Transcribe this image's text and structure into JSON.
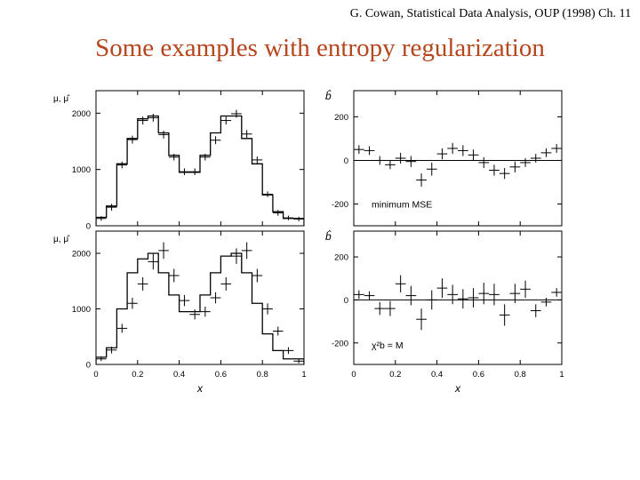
{
  "header": {
    "citation": "G. Cowan, Statistical Data Analysis, OUP (1998) Ch. 11"
  },
  "slide": {
    "title": "Some examples with entropy regularization"
  },
  "chart_data": [
    {
      "type": "line",
      "panel": "top-left",
      "ylabel": "μ, μ̂",
      "xlim": [
        0,
        1
      ],
      "ylim": [
        0,
        2400
      ],
      "yticks": [
        0,
        1000,
        2000
      ],
      "x": [
        0.025,
        0.075,
        0.125,
        0.175,
        0.225,
        0.275,
        0.325,
        0.375,
        0.425,
        0.475,
        0.525,
        0.575,
        0.625,
        0.675,
        0.725,
        0.775,
        0.825,
        0.875,
        0.925,
        0.975
      ],
      "series": [
        {
          "style": "histogram",
          "values": [
            150,
            350,
            1100,
            1550,
            1900,
            1950,
            1650,
            1250,
            950,
            950,
            1250,
            1650,
            1950,
            1950,
            1550,
            1100,
            550,
            250,
            130,
            130
          ]
        },
        {
          "style": "points",
          "values": [
            130,
            330,
            1080,
            1530,
            1870,
            1920,
            1620,
            1220,
            960,
            960,
            1220,
            1520,
            1870,
            1990,
            1630,
            1170,
            560,
            230,
            140,
            120
          ],
          "errors": [
            40,
            60,
            60,
            70,
            70,
            70,
            70,
            60,
            60,
            60,
            60,
            70,
            70,
            70,
            70,
            60,
            50,
            50,
            40,
            40
          ]
        }
      ]
    },
    {
      "type": "scatter",
      "panel": "top-right",
      "ylabel": "b̂",
      "annotation": "minimum MSE",
      "xlim": [
        0,
        1
      ],
      "ylim": [
        -300,
        320
      ],
      "yticks": [
        -200,
        0,
        200
      ],
      "x": [
        0.025,
        0.075,
        0.125,
        0.175,
        0.225,
        0.275,
        0.325,
        0.375,
        0.425,
        0.475,
        0.525,
        0.575,
        0.625,
        0.675,
        0.725,
        0.775,
        0.825,
        0.875,
        0.925,
        0.975
      ],
      "values": [
        50,
        45,
        0,
        -20,
        10,
        -5,
        -90,
        -40,
        30,
        55,
        45,
        25,
        -10,
        -45,
        -60,
        -30,
        -10,
        10,
        35,
        55
      ],
      "errors": [
        20,
        20,
        20,
        20,
        25,
        25,
        30,
        30,
        25,
        25,
        25,
        25,
        25,
        25,
        25,
        25,
        20,
        20,
        20,
        20
      ]
    },
    {
      "type": "line",
      "panel": "bottom-left",
      "ylabel": "μ, μ̂",
      "xlabel": "x",
      "xlim": [
        0,
        1
      ],
      "ylim": [
        0,
        2400
      ],
      "yticks": [
        0,
        1000,
        2000
      ],
      "xticks": [
        "0",
        "0.2",
        "0.4",
        "0.6",
        "0.8",
        "1"
      ],
      "x": [
        0.025,
        0.075,
        0.125,
        0.175,
        0.225,
        0.275,
        0.325,
        0.375,
        0.425,
        0.475,
        0.525,
        0.575,
        0.625,
        0.675,
        0.725,
        0.775,
        0.825,
        0.875,
        0.925,
        0.975
      ],
      "series": [
        {
          "style": "histogram",
          "values": [
            130,
            300,
            1000,
            1650,
            1900,
            2000,
            1650,
            1250,
            950,
            950,
            1250,
            1650,
            1950,
            2000,
            1650,
            1100,
            550,
            250,
            100,
            100
          ]
        },
        {
          "style": "points",
          "values": [
            100,
            260,
            650,
            1100,
            1450,
            1850,
            2050,
            1600,
            1150,
            900,
            950,
            1200,
            1450,
            1950,
            2050,
            1600,
            1000,
            600,
            250,
            60
          ],
          "errors": [
            40,
            60,
            80,
            100,
            120,
            140,
            150,
            120,
            100,
            90,
            90,
            100,
            120,
            140,
            150,
            120,
            100,
            80,
            60,
            40
          ]
        }
      ]
    },
    {
      "type": "scatter",
      "panel": "bottom-right",
      "ylabel": "b̂",
      "annotation": "χ²b = M",
      "xlabel": "x",
      "xlim": [
        0,
        1
      ],
      "ylim": [
        -300,
        320
      ],
      "yticks": [
        -200,
        0,
        200
      ],
      "xticks": [
        "0",
        "0.2",
        "0.4",
        "0.6",
        "0.8",
        "1"
      ],
      "x": [
        0.025,
        0.075,
        0.125,
        0.175,
        0.225,
        0.275,
        0.325,
        0.375,
        0.425,
        0.475,
        0.525,
        0.575,
        0.625,
        0.675,
        0.725,
        0.775,
        0.825,
        0.875,
        0.925,
        0.975
      ],
      "values": [
        25,
        20,
        -40,
        -40,
        75,
        20,
        -90,
        0,
        55,
        25,
        5,
        10,
        30,
        25,
        -70,
        30,
        50,
        -50,
        -10,
        35
      ],
      "errors": [
        20,
        20,
        30,
        35,
        40,
        45,
        50,
        45,
        45,
        45,
        45,
        45,
        50,
        50,
        50,
        45,
        40,
        30,
        20,
        20
      ]
    }
  ]
}
